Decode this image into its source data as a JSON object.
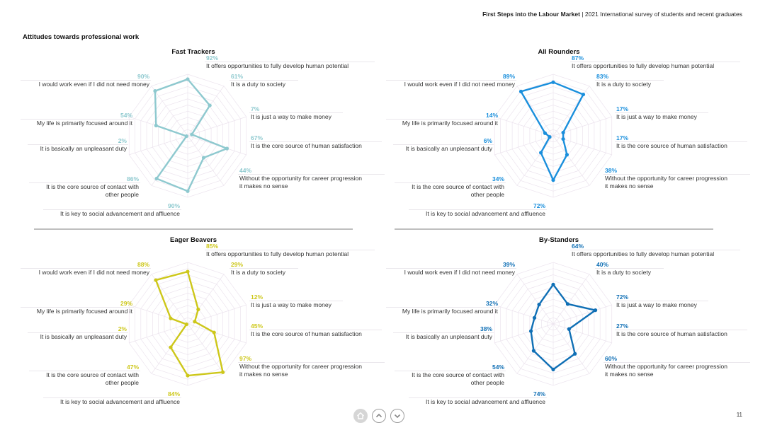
{
  "header": {
    "report_title": "First Steps into the Labour Market",
    "separator": " | ",
    "report_subtitle": "2021 International survey of students and recent graduates"
  },
  "section_title": "Attitudes towards professional work",
  "page_number": "11",
  "nav": {
    "home_icon": "home-icon",
    "up_icon": "chevron-up-icon",
    "down_icon": "chevron-down-icon"
  },
  "chart_data": [
    {
      "type": "radar",
      "title": "Fast Trackers",
      "color": "#8ec9cf",
      "axes": [
        "It offers opportunities to fully develop human potential",
        "It is a duty to society",
        "It is just a way to make money",
        "It is the core source of human satisfaction",
        "Without the opportunity for career progression it makes no sense",
        "It is key to social advancement and affluence",
        "It is the core source of contact with other people",
        "It is basically an unpleasant duty",
        "My life is primarily focused around it",
        "I would work even if I did not need money"
      ],
      "values": [
        92,
        61,
        7,
        67,
        44,
        90,
        86,
        2,
        54,
        90
      ],
      "labels": [
        "92%",
        "61%",
        "7%",
        "67%",
        "44%",
        "90%",
        "86%",
        "2%",
        "54%",
        "90%"
      ],
      "range": [
        0,
        100
      ]
    },
    {
      "type": "radar",
      "title": "All Rounders",
      "color": "#1a8fdc",
      "axes": [
        "It offers opportunities to fully develop human potential",
        "It is a duty to society",
        "It is just a way to make money",
        "It is the core source of human satisfaction",
        "Without the opportunity for career progression it makes no sense",
        "It is key to social advancement and affluence",
        "It is the core source of contact with other people",
        "It is basically an unpleasant duty",
        "My life is primarily focused around it",
        "I would work even if I did not need money"
      ],
      "values": [
        87,
        83,
        17,
        17,
        38,
        72,
        34,
        6,
        14,
        89
      ],
      "labels": [
        "87%",
        "83%",
        "17%",
        "17%",
        "38%",
        "72%",
        "34%",
        "6%",
        "14%",
        "89%"
      ],
      "range": [
        0,
        100
      ]
    },
    {
      "type": "radar",
      "title": "Eager Beavers",
      "color": "#cdc71a",
      "axes": [
        "It offers opportunities to fully develop human potential",
        "It is a duty to society",
        "It is just a way to make money",
        "It is the core source of human satisfaction",
        "Without the opportunity for career progression it makes no sense",
        "It is key to social advancement and affluence",
        "It is the core source of contact with other people",
        "It is basically an unpleasant duty",
        "My life is primarily focused around it",
        "I would work even if I did not need money"
      ],
      "values": [
        85,
        29,
        12,
        45,
        97,
        84,
        47,
        2,
        29,
        88
      ],
      "labels": [
        "85%",
        "29%",
        "12%",
        "45%",
        "97%",
        "84%",
        "47%",
        "2%",
        "29%",
        "88%"
      ],
      "range": [
        0,
        100
      ]
    },
    {
      "type": "radar",
      "title": "By-Standers",
      "color": "#0f6fb5",
      "axes": [
        "It offers opportunities to fully develop human potential",
        "It is a duty to society",
        "It is just a way to make money",
        "It is the core source of human satisfaction",
        "Without the opportunity for career progression it makes no sense",
        "It is key to social advancement and affluence",
        "It is the core source of contact with other people",
        "It is basically an unpleasant duty",
        "My life is primarily focused around it",
        "I would work even if I did not need money"
      ],
      "values": [
        64,
        40,
        72,
        27,
        60,
        74,
        54,
        38,
        32,
        39
      ],
      "labels": [
        "64%",
        "40%",
        "72%",
        "27%",
        "60%",
        "74%",
        "54%",
        "38%",
        "32%",
        "39%"
      ],
      "range": [
        0,
        100
      ]
    }
  ]
}
